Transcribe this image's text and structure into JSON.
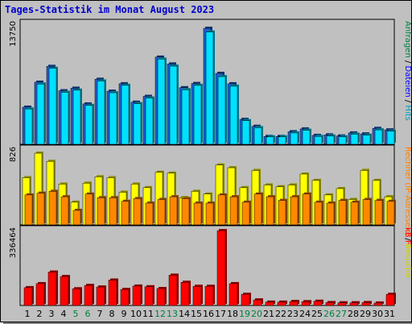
{
  "title": "Tages-Statistik im Monat August 2023",
  "chart_data": {
    "type": "bar",
    "categories": [
      "1",
      "2",
      "3",
      "4",
      "5",
      "6",
      "7",
      "8",
      "9",
      "10",
      "11",
      "12",
      "13",
      "14",
      "15",
      "16",
      "17",
      "18",
      "19",
      "20",
      "21",
      "22",
      "23",
      "24",
      "25",
      "26",
      "27",
      "28",
      "29",
      "30",
      "31"
    ],
    "weekend_days": [
      "5",
      "6",
      "12",
      "13",
      "19",
      "20",
      "26",
      "27"
    ],
    "panels": [
      {
        "name": "hits-files",
        "ymax_label": "13750",
        "ylim": [
          0,
          13750
        ],
        "right_labels": [
          {
            "text": "Anfragen",
            "color": "#008040"
          },
          {
            "text": " / ",
            "color": "#000000"
          },
          {
            "text": "Dateien",
            "color": "#0000ff"
          },
          {
            "text": " / ",
            "color": "#000000"
          },
          {
            "text": "Hits",
            "color": "#00a0c0"
          }
        ],
        "series": [
          {
            "name": "Anfragen",
            "color": "#2060d0",
            "values": [
              4250,
              7110,
              8920,
              6130,
              6420,
              4620,
              7440,
              6080,
              6930,
              4820,
              5490,
              9980,
              9200,
              6480,
              6960,
              13280,
              8120,
              6930,
              2850,
              2060,
              900,
              900,
              1440,
              1760,
              1020,
              1080,
              950,
              1300,
              1190,
              1820,
              1650
            ]
          },
          {
            "name": "Dateien",
            "color": "#00e0ff",
            "values": [
              4050,
              6900,
              8700,
              5950,
              6200,
              4450,
              7250,
              5900,
              6750,
              4650,
              5300,
              9750,
              8950,
              6250,
              6750,
              12850,
              7750,
              6650,
              2700,
              1900,
              850,
              850,
              1300,
              1600,
              900,
              950,
              850,
              1150,
              1050,
              1650,
              1500
            ]
          }
        ]
      },
      {
        "name": "visits",
        "ymax_label": "826",
        "ylim": [
          0,
          826
        ],
        "right_labels": [
          {
            "text": "Rechner (IP-Adressen)",
            "color": "#ff8000"
          },
          {
            "text": " / ",
            "color": "#000000"
          },
          {
            "text": "Besuche",
            "color": "#d0d000"
          }
        ],
        "series": [
          {
            "name": "Besuche",
            "color": "#ffff00",
            "values": [
              520,
              790,
              700,
              450,
              250,
              460,
              530,
              520,
              360,
              450,
              410,
              580,
              570,
              300,
              370,
              340,
              660,
              630,
              410,
              600,
              440,
              420,
              440,
              560,
              490,
              330,
              400,
              280,
              600,
              490,
              310
            ]
          },
          {
            "name": "Rechner (IP-Adressen)",
            "color": "#ff8800",
            "values": [
              330,
              350,
              370,
              310,
              160,
              340,
              300,
              300,
              260,
              290,
              240,
              280,
              310,
              290,
              240,
              240,
              330,
              310,
              250,
              340,
              310,
              270,
              310,
              340,
              250,
              240,
              270,
              250,
              280,
              270,
              260
            ]
          }
        ]
      },
      {
        "name": "kbytes",
        "ymax_label": "336464",
        "ylim": [
          0,
          336464
        ],
        "right_labels": [
          {
            "text": "kB F",
            "color": "#ff0000"
          }
        ],
        "series": [
          {
            "name": "kB F",
            "color": "#ff0000",
            "values": [
              80000,
              98000,
              150000,
              130000,
              75000,
              90000,
              83000,
              114000,
              72000,
              87000,
              84000,
              76000,
              136000,
              104000,
              86000,
              86000,
              336000,
              98000,
              50000,
              25000,
              15000,
              15000,
              18000,
              17000,
              19000,
              13000,
              12000,
              12000,
              13000,
              11000,
              50000
            ]
          }
        ]
      }
    ]
  }
}
